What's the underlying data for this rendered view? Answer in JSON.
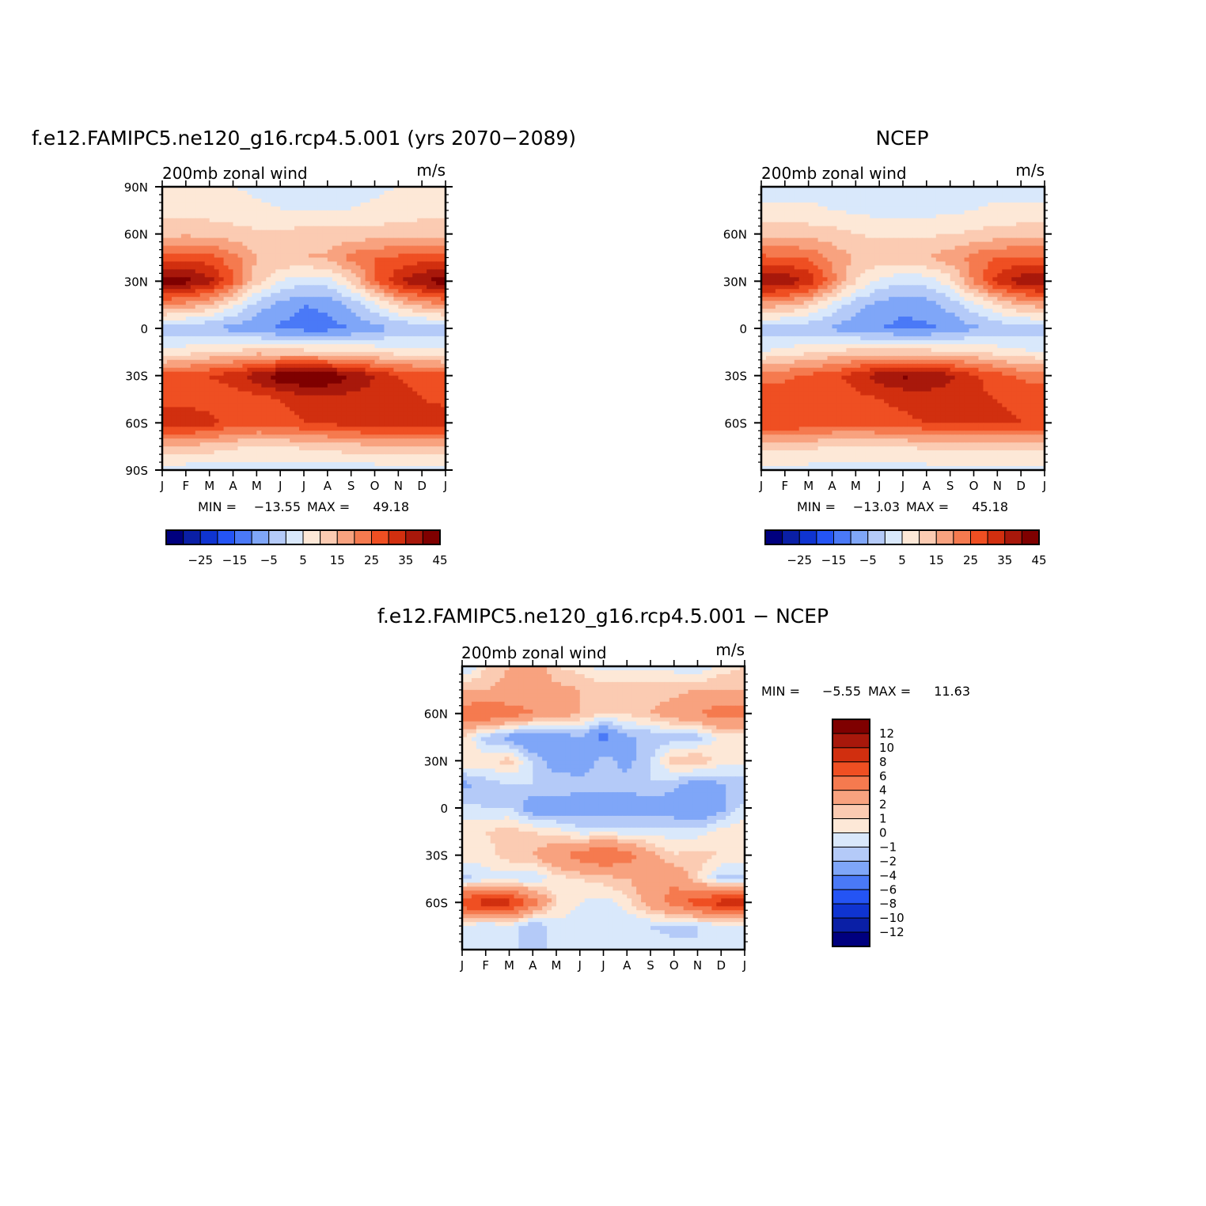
{
  "figure": {
    "panels": [
      {
        "title": "f.e12.FAMIPC5.ne120_g16.rcp4.5.001 (yrs 2070−2089)",
        "subtitle_left": "200mb zonal wind",
        "subtitle_right": "m/s",
        "min_label": "MIN =",
        "min_value": "−13.55",
        "max_label": "MAX =",
        "max_value": "49.18",
        "y_tick_labels": [
          "90N",
          "60N",
          "30N",
          "0",
          "30S",
          "60S",
          "90S"
        ]
      },
      {
        "title": "NCEP",
        "subtitle_left": "200mb zonal wind",
        "subtitle_right": "m/s",
        "min_label": "MIN =",
        "min_value": "−13.03",
        "max_label": "MAX =",
        "max_value": "45.18",
        "y_tick_labels": [
          "60N",
          "30N",
          "0",
          "30S",
          "60S"
        ]
      },
      {
        "title": "f.e12.FAMIPC5.ne120_g16.rcp4.5.001 − NCEP",
        "subtitle_left": "200mb zonal wind",
        "subtitle_right": "m/s",
        "min_label": "MIN =",
        "min_value": "−5.55",
        "max_label": "MAX =",
        "max_value": "11.63",
        "y_tick_labels": [
          "60N",
          "30N",
          "0",
          "30S",
          "60S"
        ]
      }
    ],
    "x_tick_labels": [
      "J",
      "F",
      "M",
      "A",
      "M",
      "J",
      "J",
      "A",
      "S",
      "O",
      "N",
      "D",
      "J"
    ],
    "colorbar_fields": {
      "labels": [
        "−25",
        "−15",
        "−5",
        "5",
        "15",
        "25",
        "35",
        "45"
      ],
      "colors": [
        "#00007f",
        "#0a1fa6",
        "#0f34d1",
        "#2454f4",
        "#4a79f7",
        "#7fa6f8",
        "#b4caf8",
        "#d9e8fb",
        "#fde8d7",
        "#fbcbb2",
        "#f8a27f",
        "#f57a4f",
        "#ef4f22",
        "#d12f0f",
        "#a8180b",
        "#7f0000"
      ]
    },
    "colorbar_diff": {
      "labels": [
        "12",
        "10",
        "8",
        "6",
        "4",
        "2",
        "1",
        "0",
        "−1",
        "−2",
        "−4",
        "−6",
        "−8",
        "−10",
        "−12"
      ],
      "colors": [
        "#7f0000",
        "#a8180b",
        "#d12f0f",
        "#ef4f22",
        "#f57a4f",
        "#f8a27f",
        "#fbcbb2",
        "#fde8d7",
        "#d9e8fb",
        "#b4caf8",
        "#7fa6f8",
        "#4a79f7",
        "#2454f4",
        "#0f34d1",
        "#0a1fa6",
        "#00007f"
      ]
    }
  },
  "chart_data": [
    {
      "type": "heatmap",
      "title": "f.e12.FAMIPC5.ne120_g16.rcp4.5.001 (yrs 2070−2089)",
      "variable": "200mb zonal wind",
      "units": "m/s",
      "x": [
        "J",
        "F",
        "M",
        "A",
        "M",
        "J",
        "J",
        "A",
        "S",
        "O",
        "N",
        "D",
        "J"
      ],
      "y": [
        90,
        75,
        60,
        45,
        30,
        15,
        0,
        -15,
        -30,
        -45,
        -60,
        -75,
        -90
      ],
      "ylim": [
        -90,
        90
      ],
      "z": [
        [
          5,
          5,
          5,
          5,
          4,
          4,
          4,
          4,
          4,
          4,
          5,
          5,
          5
        ],
        [
          8,
          8,
          8,
          7,
          6,
          5,
          5,
          5,
          5,
          6,
          7,
          8,
          8
        ],
        [
          13,
          14,
          13,
          12,
          11,
          11,
          12,
          12,
          12,
          12,
          13,
          13,
          13
        ],
        [
          28,
          28,
          27,
          22,
          15,
          14,
          15,
          16,
          22,
          25,
          26,
          27,
          28
        ],
        [
          43,
          42,
          37,
          26,
          12,
          5,
          2,
          3,
          10,
          24,
          34,
          40,
          43
        ],
        [
          20,
          18,
          14,
          6,
          -2,
          -7,
          -10,
          -9,
          -4,
          4,
          12,
          17,
          20
        ],
        [
          -3,
          -4,
          -5,
          -7,
          -9,
          -11,
          -12,
          -12,
          -10,
          -7,
          -5,
          -4,
          -3
        ],
        [
          6,
          8,
          10,
          11,
          13,
          12,
          12,
          11,
          10,
          9,
          8,
          7,
          6
        ],
        [
          27,
          28,
          30,
          33,
          38,
          44,
          47,
          45,
          40,
          35,
          30,
          28,
          27
        ],
        [
          28,
          28,
          27,
          27,
          28,
          30,
          32,
          33,
          33,
          33,
          32,
          30,
          28
        ],
        [
          34,
          34,
          32,
          28,
          27,
          28,
          30,
          31,
          33,
          34,
          35,
          35,
          34
        ],
        [
          14,
          14,
          13,
          11,
          10,
          10,
          11,
          12,
          13,
          14,
          14,
          14,
          14
        ],
        [
          2,
          2,
          2,
          2,
          2,
          2,
          2,
          2,
          2,
          2,
          2,
          2,
          2
        ]
      ],
      "min": -13.55,
      "max": 49.18
    },
    {
      "type": "heatmap",
      "title": "NCEP",
      "variable": "200mb zonal wind",
      "units": "m/s",
      "x": [
        "J",
        "F",
        "M",
        "A",
        "M",
        "J",
        "J",
        "A",
        "S",
        "O",
        "N",
        "D",
        "J"
      ],
      "y": [
        90,
        75,
        60,
        45,
        30,
        15,
        0,
        -15,
        -30,
        -45,
        -60,
        -75,
        -90
      ],
      "ylim": [
        -90,
        90
      ],
      "z": [
        [
          3,
          3,
          3,
          3,
          3,
          3,
          3,
          3,
          3,
          3,
          3,
          3,
          3
        ],
        [
          6,
          6,
          6,
          5,
          4,
          3,
          3,
          3,
          4,
          5,
          6,
          6,
          6
        ],
        [
          14,
          14,
          13,
          12,
          10,
          9,
          9,
          9,
          10,
          11,
          12,
          13,
          14
        ],
        [
          26,
          26,
          24,
          19,
          14,
          13,
          14,
          15,
          18,
          22,
          25,
          26,
          26
        ],
        [
          40,
          39,
          34,
          22,
          10,
          4,
          1,
          2,
          8,
          21,
          32,
          38,
          40
        ],
        [
          18,
          16,
          12,
          4,
          -3,
          -7,
          -9,
          -8,
          -3,
          3,
          10,
          15,
          18
        ],
        [
          -3,
          -3,
          -4,
          -6,
          -8,
          -10,
          -11,
          -11,
          -9,
          -6,
          -4,
          -3,
          -3
        ],
        [
          5,
          7,
          9,
          11,
          12,
          12,
          12,
          12,
          11,
          10,
          8,
          6,
          5
        ],
        [
          23,
          24,
          26,
          28,
          33,
          38,
          41,
          40,
          36,
          31,
          27,
          24,
          23
        ],
        [
          28,
          28,
          27,
          27,
          28,
          30,
          31,
          32,
          32,
          31,
          30,
          29,
          28
        ],
        [
          30,
          30,
          29,
          27,
          27,
          28,
          29,
          30,
          31,
          31,
          31,
          30,
          30
        ],
        [
          12,
          12,
          11,
          10,
          9,
          9,
          10,
          11,
          12,
          12,
          12,
          12,
          12
        ],
        [
          3,
          3,
          3,
          3,
          3,
          3,
          3,
          3,
          3,
          3,
          3,
          3,
          3
        ]
      ],
      "min": -13.03,
      "max": 45.18
    },
    {
      "type": "heatmap",
      "title": "f.e12.FAMIPC5.ne120_g16.rcp4.5.001 − NCEP",
      "variable": "200mb zonal wind",
      "units": "m/s",
      "x": [
        "J",
        "F",
        "M",
        "A",
        "M",
        "J",
        "J",
        "A",
        "S",
        "O",
        "N",
        "D",
        "J"
      ],
      "y": [
        90,
        75,
        60,
        45,
        30,
        15,
        0,
        -15,
        -30,
        -45,
        -60,
        -75,
        -90
      ],
      "ylim": [
        -90,
        90
      ],
      "z": [
        [
          -1.5,
          1,
          2,
          3,
          1,
          0.5,
          -0.5,
          -0.5,
          -0.5,
          -0.5,
          -1,
          0.5,
          1
        ],
        [
          2,
          2,
          2.5,
          3,
          2.5,
          2,
          1.5,
          1.5,
          1.5,
          1.5,
          2,
          2,
          2
        ],
        [
          5,
          6,
          5,
          4,
          3,
          2,
          1,
          1,
          2,
          3,
          4,
          5,
          5
        ],
        [
          1,
          -1.5,
          -2.5,
          -4,
          -3,
          -2,
          -5,
          -2,
          -2,
          -1.5,
          -1.5,
          0.5,
          0.5
        ],
        [
          1,
          0.5,
          1.5,
          -1,
          -3,
          -3,
          -1.5,
          -2.5,
          -1,
          1.5,
          2,
          0.5,
          0.5
        ],
        [
          -2.5,
          -1.5,
          -1,
          -1,
          -1,
          -1.5,
          -1.5,
          -1.5,
          -1,
          -1.5,
          -3,
          -2,
          -2
        ],
        [
          -0.5,
          -1,
          -1,
          -3,
          -3,
          -3,
          -3,
          -3,
          -3,
          -3,
          -4,
          -2.5,
          -0.5
        ],
        [
          0.5,
          1,
          1.5,
          1,
          0.5,
          -0.5,
          -0.5,
          -0.5,
          -0.5,
          -0.5,
          -0.5,
          0.5,
          0.5
        ],
        [
          0.5,
          0.5,
          1.5,
          2,
          3.5,
          5,
          6,
          5,
          2.5,
          1,
          1.5,
          1,
          0.5
        ],
        [
          -1.5,
          -0.5,
          -0.5,
          -1,
          0.5,
          1,
          1.5,
          2,
          3,
          3.5,
          1,
          -1.5,
          -1.5
        ],
        [
          8,
          9,
          9,
          5,
          1,
          0,
          -0.5,
          0.5,
          3,
          5,
          7,
          9,
          9
        ],
        [
          -0.5,
          -1,
          -0.5,
          -2,
          -0.5,
          -0.5,
          -1,
          -1,
          -1,
          -1.5,
          -1,
          -0.5,
          -0.5
        ],
        [
          -1,
          -1,
          -1,
          -1,
          -1,
          -1,
          -0.5,
          -0.5,
          -0.5,
          -0.5,
          -1,
          -1,
          -1
        ]
      ],
      "min": -5.55,
      "max": 11.63
    }
  ]
}
